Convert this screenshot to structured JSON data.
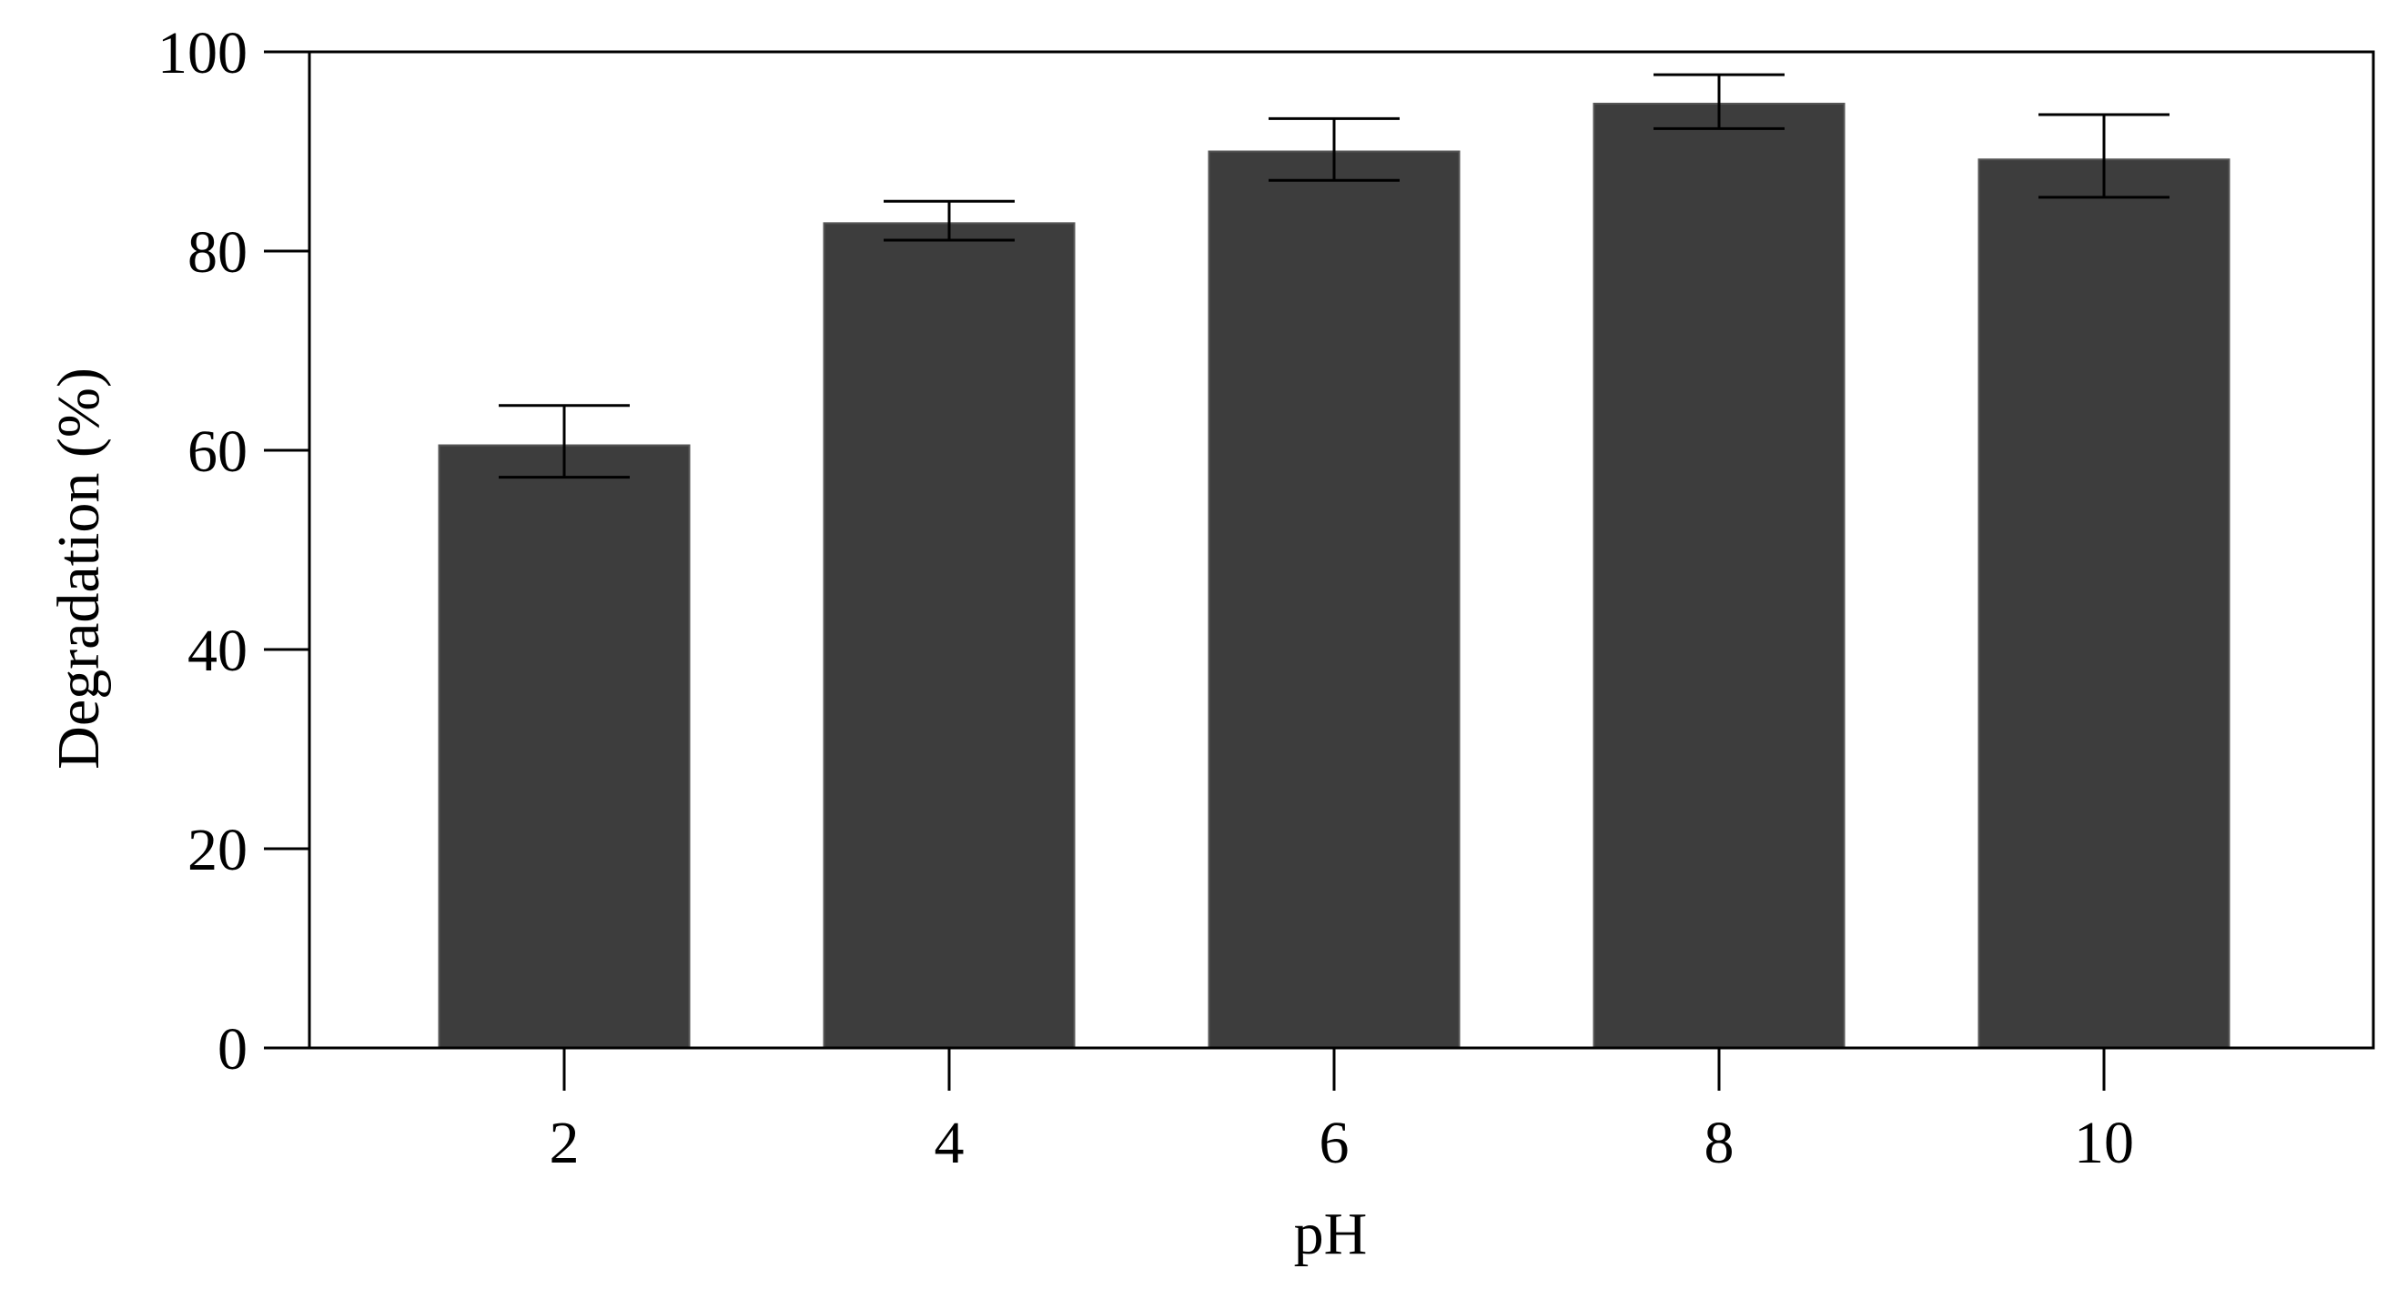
{
  "chart_data": {
    "type": "bar",
    "title": "",
    "xlabel": "pH",
    "ylabel": "Degradation (%)",
    "categories": [
      "2",
      "4",
      "6",
      "8",
      "10"
    ],
    "values": [
      60.5,
      82.8,
      90.0,
      94.8,
      89.2
    ],
    "error_low": [
      57.3,
      81.1,
      87.1,
      92.3,
      85.4
    ],
    "error_high": [
      64.5,
      85.0,
      93.3,
      97.7,
      93.7
    ],
    "ylim": [
      0,
      100
    ],
    "yticks": [
      "0",
      "20",
      "40",
      "60",
      "80",
      "100"
    ],
    "bar_color": "#3d3d3d",
    "grid": false,
    "legend": "none"
  }
}
